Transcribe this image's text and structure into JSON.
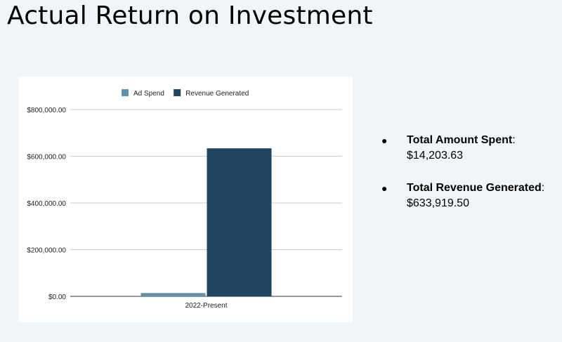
{
  "slide": {
    "title": "Actual Return on Investment"
  },
  "chart_data": {
    "type": "bar",
    "categories": [
      "2022-Present"
    ],
    "series": [
      {
        "name": "Ad Spend",
        "color": "#6390ad",
        "values": [
          14203.63
        ]
      },
      {
        "name": "Revenue Generated",
        "color": "#1f4560",
        "values": [
          633919.5
        ]
      }
    ],
    "y_ticks": [
      "$0.00",
      "$200,000.00",
      "$400,000.00",
      "$600,000.00",
      "$800,000.00"
    ],
    "ylim": [
      0,
      800000
    ],
    "grid": true,
    "legend_position": "top-center"
  },
  "summary": {
    "items": [
      {
        "label": "Total Amount Spent",
        "sep": ":",
        "value": "$14,203.63"
      },
      {
        "label": "Total Revenue Generated",
        "sep": ":",
        "value": "$633,919.50"
      }
    ],
    "bullet": "●"
  }
}
